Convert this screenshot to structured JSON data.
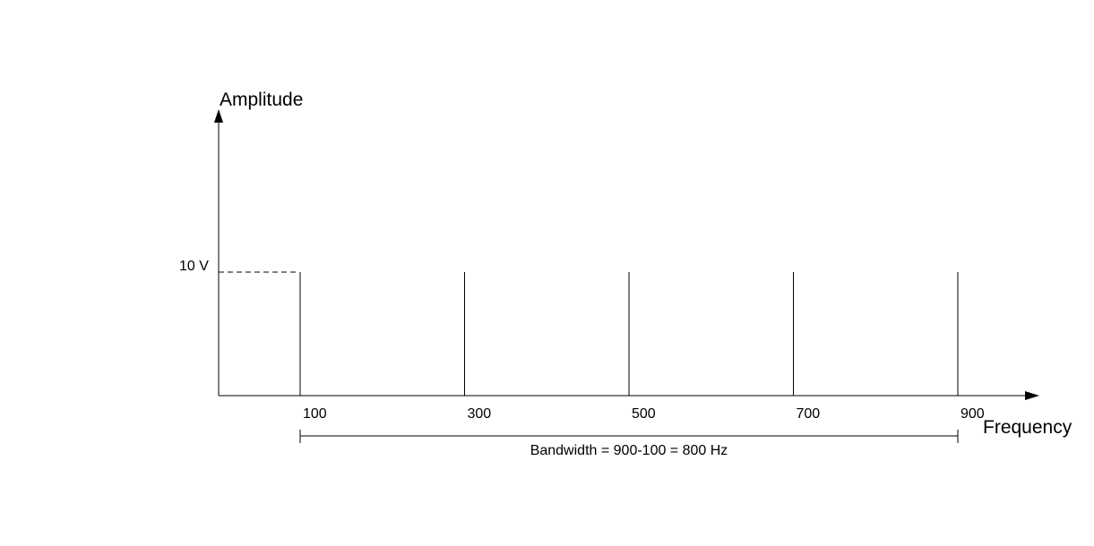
{
  "chart_data": {
    "type": "bar",
    "xlabel": "Frequency",
    "ylabel": "Amplitude",
    "categories": [
      "100",
      "300",
      "500",
      "700",
      "900"
    ],
    "x": [
      100,
      300,
      500,
      700,
      900
    ],
    "values": [
      10,
      10,
      10,
      10,
      10
    ],
    "y_marker_label": "10 V",
    "y_marker_value": 10,
    "bandwidth_label": "Bandwidth = 900-100 = 800 Hz",
    "bandwidth_range": [
      100,
      900
    ]
  }
}
